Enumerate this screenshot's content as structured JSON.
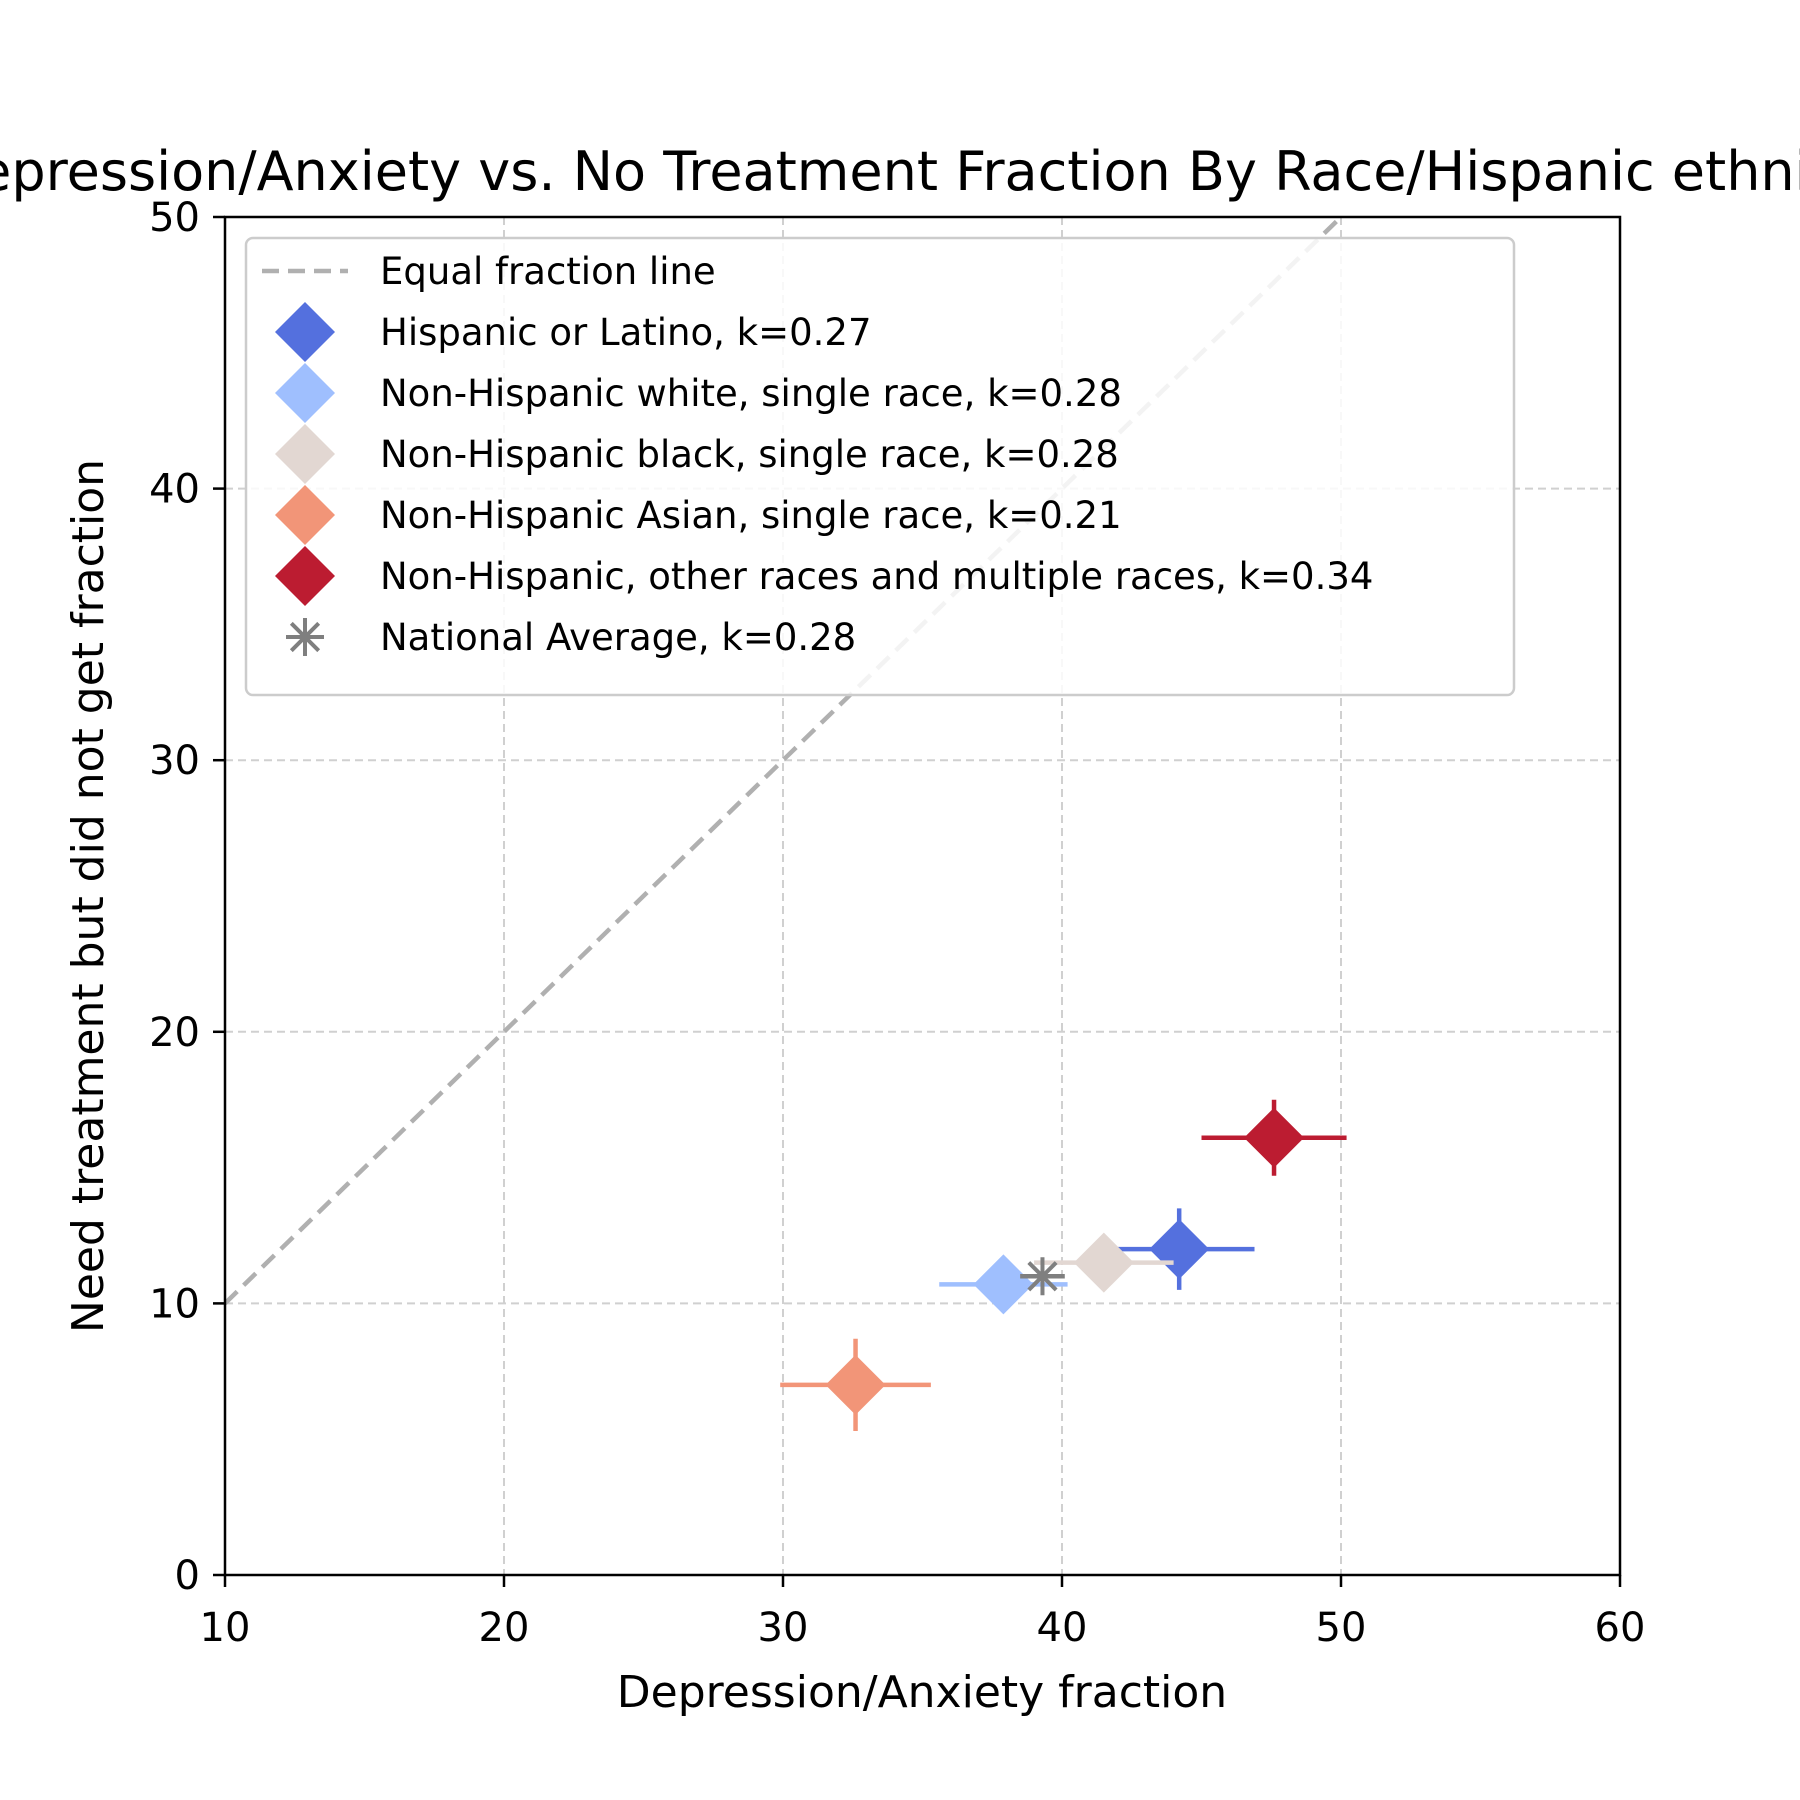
{
  "chart_data": {
    "type": "scatter",
    "title": "Depression/Anxiety vs. No Treatment Fraction By Race/Hispanic ethnicity",
    "xlabel": "Depression/Anxiety fraction",
    "ylabel": "Need treatment but did not get fraction",
    "xlim": [
      10,
      60
    ],
    "ylim": [
      0,
      50
    ],
    "xticks": [
      "10",
      "20",
      "30",
      "40",
      "50",
      "60"
    ],
    "yticks": [
      "0",
      "10",
      "20",
      "30",
      "40",
      "50"
    ],
    "grid": true,
    "legend_position": "top-left",
    "reference_line": {
      "label": "Equal fraction line",
      "points": [
        [
          10,
          10
        ],
        [
          50,
          50
        ]
      ],
      "color": "#b0b0b0"
    },
    "series": [
      {
        "name": "Hispanic or Latino, k=0.27",
        "x": 44.2,
        "y": 12.0,
        "xerr": 2.7,
        "yerr": 1.5,
        "color": "#5470de",
        "marker": "diamond"
      },
      {
        "name": "Non-Hispanic white, single race, k=0.28",
        "x": 37.9,
        "y": 10.7,
        "xerr": 2.3,
        "yerr": 0.3,
        "color": "#9fbffe",
        "marker": "diamond"
      },
      {
        "name": "Non-Hispanic black, single race, k=0.28",
        "x": 41.5,
        "y": 11.5,
        "xerr": 2.5,
        "yerr": 0.3,
        "color": "#e2d7d2",
        "marker": "diamond"
      },
      {
        "name": "Non-Hispanic Asian, single race, k=0.21",
        "x": 32.6,
        "y": 7.0,
        "xerr": 2.7,
        "yerr": 1.7,
        "color": "#f29578",
        "marker": "diamond"
      },
      {
        "name": "Non-Hispanic, other races and multiple races, k=0.34",
        "x": 47.6,
        "y": 16.1,
        "xerr": 2.6,
        "yerr": 1.4,
        "color": "#bc1c31",
        "marker": "diamond"
      },
      {
        "name": "National Average, k=0.28",
        "x": 39.3,
        "y": 11.0,
        "xerr": 0.8,
        "yerr": 0.0,
        "color": "#7f7f7f",
        "marker": "star"
      }
    ]
  }
}
